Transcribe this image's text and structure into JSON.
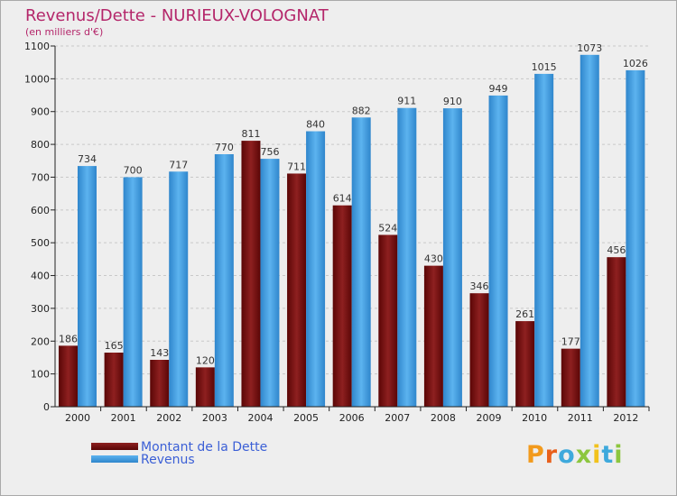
{
  "chart_data": {
    "type": "bar",
    "title": "Revenus/Dette - NURIEUX-VOLOGNAT",
    "subtitle": "(en milliers d'€)",
    "xlabel": "",
    "ylabel": "",
    "categories": [
      "2000",
      "2001",
      "2002",
      "2003",
      "2004",
      "2005",
      "2006",
      "2007",
      "2008",
      "2009",
      "2010",
      "2011",
      "2012"
    ],
    "series": [
      {
        "name": "Montant de la Dette",
        "color": "#8b1a1a",
        "values": [
          186,
          165,
          143,
          120,
          811,
          711,
          614,
          524,
          430,
          346,
          261,
          177,
          456
        ]
      },
      {
        "name": "Revenus",
        "color": "#4da6e8",
        "values": [
          734,
          700,
          717,
          770,
          756,
          840,
          882,
          911,
          910,
          949,
          1015,
          1073,
          1026
        ]
      }
    ],
    "ylim": [
      0,
      1100
    ],
    "yticks": [
      0,
      100,
      200,
      300,
      400,
      500,
      600,
      700,
      800,
      900,
      1000,
      1100
    ],
    "grid": true,
    "legend_position": "bottom-left"
  },
  "logo": {
    "letters": [
      "P",
      "r",
      "o",
      "x",
      "i",
      "t",
      "i"
    ],
    "colors": [
      "#f29a1c",
      "#e8601c",
      "#3ea9dc",
      "#8cc63e",
      "#f2c21c",
      "#3ea9dc",
      "#8cc63e"
    ]
  }
}
